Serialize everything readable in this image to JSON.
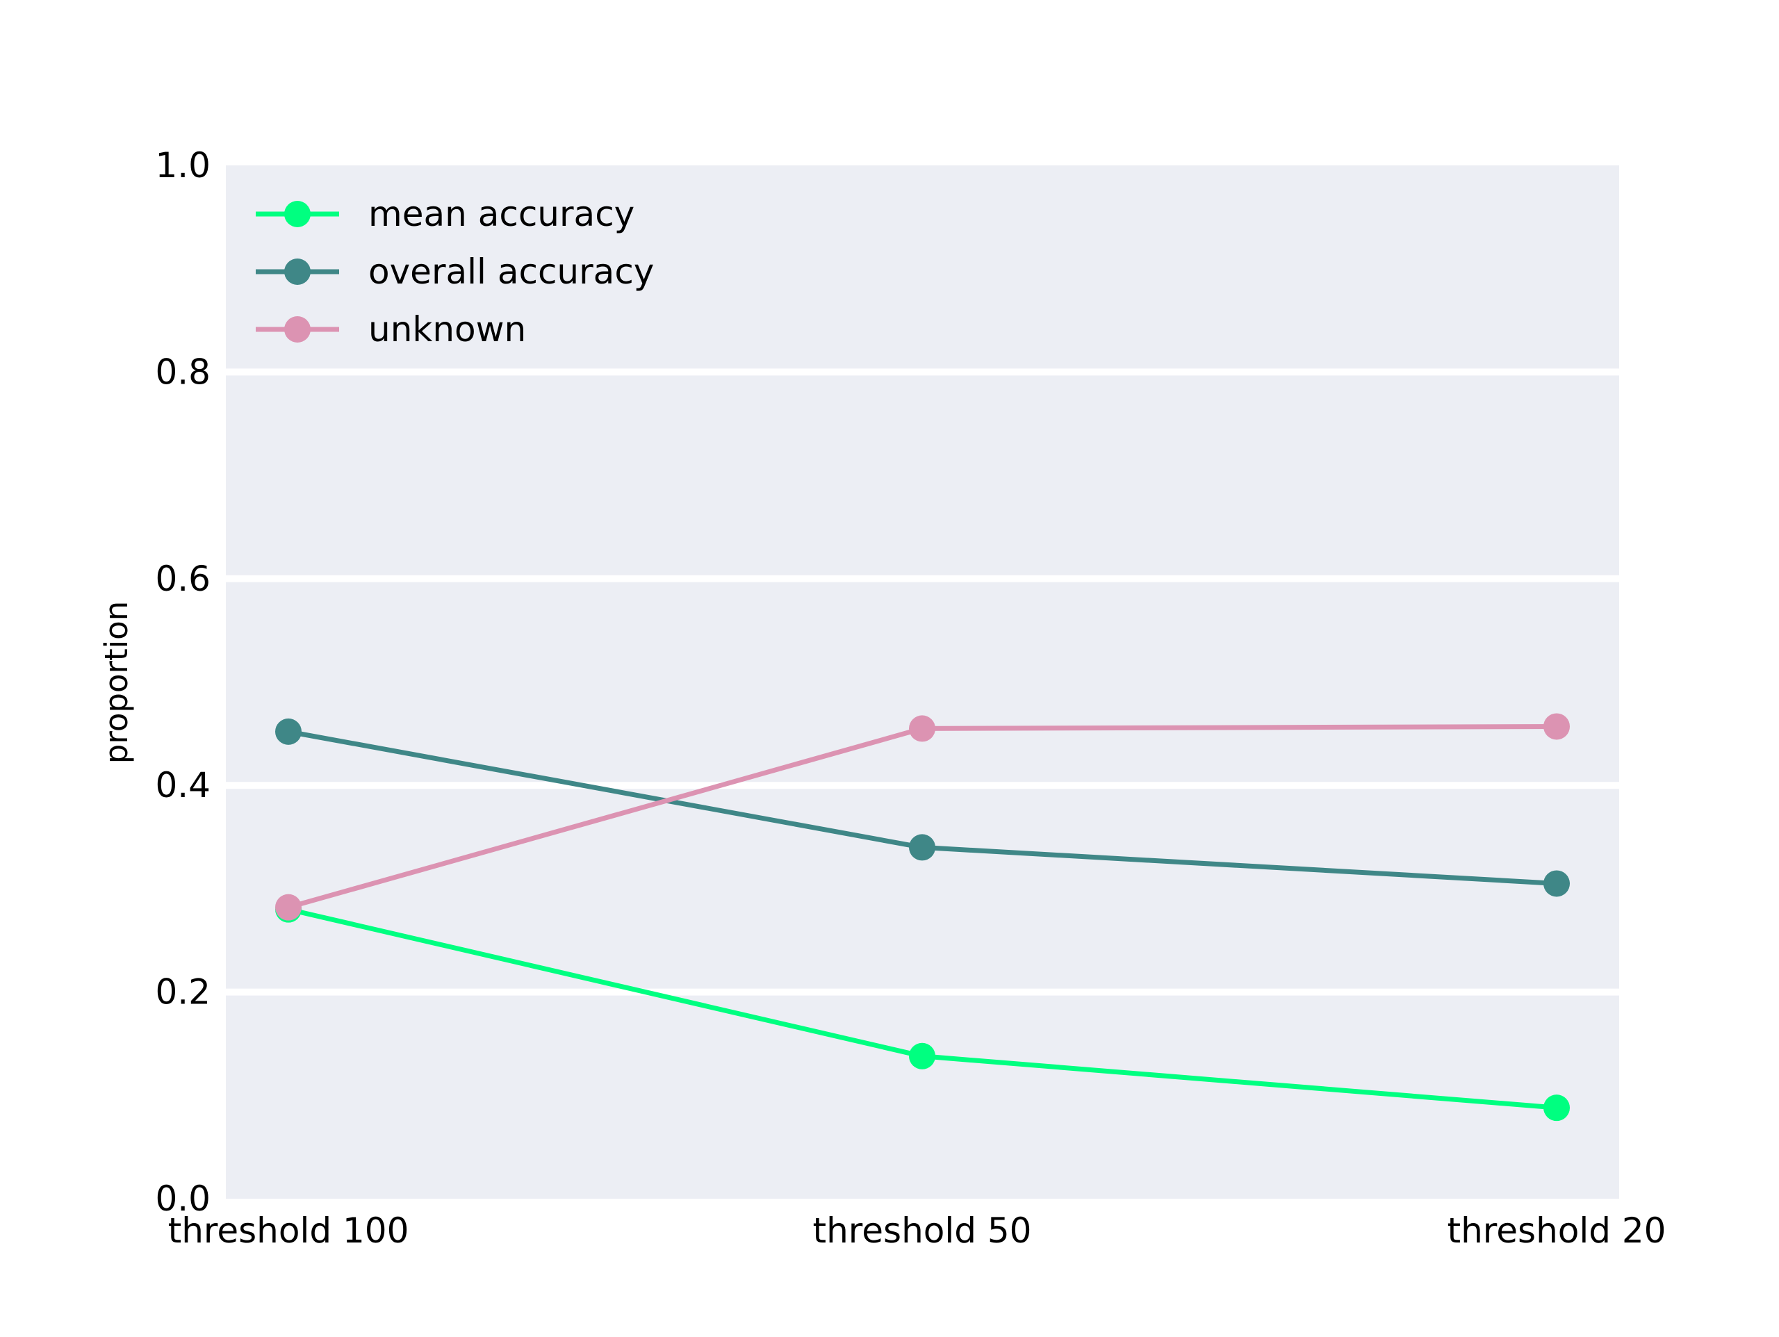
{
  "chart_data": {
    "type": "line",
    "title": "",
    "xlabel": "",
    "ylabel": "proportion",
    "categories": [
      "threshold 100",
      "threshold 50",
      "threshold 20"
    ],
    "ylim": [
      0,
      1.0
    ],
    "yticks": [
      "0.0",
      "0.2",
      "0.4",
      "0.6",
      "0.8",
      "1.0"
    ],
    "grid": "horizontal",
    "legend_position": "top-left",
    "background_color": "#eceef4",
    "series": [
      {
        "name": "mean accuracy",
        "color": "#00ff80",
        "values": [
          0.28,
          0.138,
          0.088
        ]
      },
      {
        "name": "overall accuracy",
        "color": "#3f8787",
        "values": [
          0.452,
          0.34,
          0.305
        ]
      },
      {
        "name": "unknown",
        "color": "#dc93b2",
        "values": [
          0.282,
          0.455,
          0.457
        ]
      }
    ]
  }
}
